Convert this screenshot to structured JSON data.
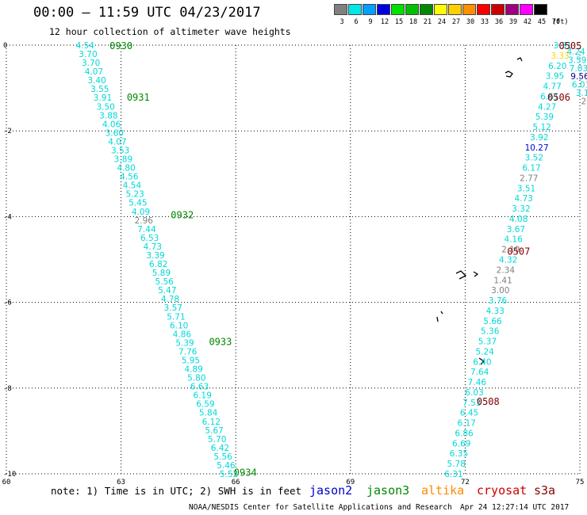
{
  "header": {
    "title": "00:00 – 11:59 UTC 04/23/2017",
    "subtitle": "12 hour collection of altimeter wave heights"
  },
  "legend": {
    "colors": [
      "#808080",
      "#00e8e8",
      "#00a0ff",
      "#0000e0",
      "#00e000",
      "#00c000",
      "#008800",
      "#ffff00",
      "#ffd000",
      "#ff9000",
      "#ff0000",
      "#cc0000",
      "#a00080",
      "#ff00ff",
      "#000000"
    ],
    "labels": [
      "3",
      "6",
      "9",
      "12",
      "15",
      "18",
      "21",
      "24",
      "27",
      "30",
      "33",
      "36",
      "39",
      "42",
      "45",
      "70"
    ],
    "unit": "(ft)"
  },
  "footer": {
    "note": "note: 1) Time is in UTC; 2) SWH is in feet",
    "satellites": [
      {
        "name": "jason2",
        "color": "#0000cc"
      },
      {
        "name": "jason3",
        "color": "#008800"
      },
      {
        "name": "altika",
        "color": "#ff8800"
      },
      {
        "name": "cryosat",
        "color": "#cc0000"
      },
      {
        "name": "s3a",
        "color": "#880000"
      }
    ],
    "credit": "NOAA/NESDIS Center for Satellite Applications and Research",
    "timestamp": "Apr 24 12:27:14 UTC 2017"
  },
  "chart_data": {
    "type": "scatter",
    "title": "00:00 – 11:59 UTC 04/23/2017",
    "subtitle": "12 hour collection of altimeter wave heights",
    "xlim": [
      60,
      75
    ],
    "ylim": [
      -10,
      0
    ],
    "x_ticks": [
      60,
      63,
      66,
      69,
      72,
      75
    ],
    "y_ticks": [
      0,
      -2,
      -4,
      -6,
      -8,
      -10
    ],
    "grid": true,
    "colors": {
      "cyan": "#00d8d8",
      "gray": "#808080",
      "blue": "#0000dd",
      "yellow": "#ffd200",
      "darkblue": "#00008b",
      "green": "#008800",
      "darkred": "#800000"
    },
    "tracks": [
      {
        "satellite": "jason3",
        "lon_start": 62.06,
        "lon_end": 65.82,
        "lat_start": 0.0,
        "lat_end": -10.0,
        "values": [
          "4.54",
          "3.70",
          "3.70",
          "4.07",
          "3.40",
          "3.55",
          "3.91",
          "3.50",
          "3.88",
          "4.06",
          "3.60",
          "4.07",
          "3.53",
          "3.89",
          "4.80",
          "4.56",
          "4.54",
          "5.23",
          "5.45",
          "4.09",
          "2.96",
          "7.44",
          "6.53",
          "4.73",
          "3.39",
          "6.82",
          "5.89",
          "5.56",
          "5.47",
          "4.78",
          "3.57",
          "5.71",
          "6.10",
          "4.86",
          "5.39",
          "7.76",
          "5.95",
          "4.89",
          "5.80",
          "6.63",
          "6.19",
          "6.59",
          "5.84",
          "6.12",
          "5.67",
          "5.70",
          "6.42",
          "5.56",
          "5.46",
          "5.52"
        ],
        "highlight": {
          "2.96": "gray"
        }
      },
      {
        "satellite": "cryosat",
        "lon_start": 74.55,
        "lon_end": 71.7,
        "lat_start": 0.0,
        "lat_end": -10.0,
        "values": [
          "3.31",
          "3.33",
          "6.20",
          "3.95",
          "4.77",
          "6.61",
          "4.27",
          "5.39",
          "5.12",
          "3.92",
          "10.27",
          "3.52",
          "6.17",
          "2.77",
          "3.51",
          "4.73",
          "3.32",
          "4.08",
          "3.67",
          "4.16",
          "2.19",
          "4.32",
          "2.34",
          "1.41",
          "3.00",
          "3.76",
          "4.33",
          "5.66",
          "5.36",
          "5.37",
          "5.24",
          "6.40",
          "7.64",
          "7.46",
          "6.03",
          "7.53",
          "6.45",
          "6.17",
          "6.86",
          "6.69",
          "6.35",
          "5.78",
          "6.31"
        ],
        "highlight": {
          "3.33": "yellow",
          "10.27": "blue",
          "2.77": "gray",
          "2.19": "gray",
          "2.34": "gray",
          "1.41": "gray",
          "3.00": "gray"
        }
      },
      {
        "satellite": "cryosat",
        "lon_start": 74.9,
        "lon_end": 75.1,
        "lat_start": -0.15,
        "lat_end": -1.3,
        "values": [
          "4.24",
          "3.59",
          "7.03",
          "9.56",
          "6.01",
          "3.1",
          "2"
        ],
        "highlight": {
          "9.56": "darkblue",
          "2": "gray"
        }
      }
    ],
    "time_labels": [
      {
        "time": "0930",
        "lon": 63.0,
        "lat": 0.0,
        "color": "green"
      },
      {
        "time": "0931",
        "lon": 63.45,
        "lat": -1.2,
        "color": "green"
      },
      {
        "time": "0932",
        "lon": 64.6,
        "lat": -3.95,
        "color": "green"
      },
      {
        "time": "0933",
        "lon": 65.6,
        "lat": -6.9,
        "color": "green"
      },
      {
        "time": "0934",
        "lon": 66.25,
        "lat": -9.95,
        "color": "green"
      },
      {
        "time": "0505",
        "lon": 74.75,
        "lat": 0.0,
        "color": "darkred"
      },
      {
        "time": "0506",
        "lon": 74.45,
        "lat": -1.2,
        "color": "darkred"
      },
      {
        "time": "0507",
        "lon": 73.4,
        "lat": -4.8,
        "color": "darkred"
      },
      {
        "time": "0508",
        "lon": 72.6,
        "lat": -8.3,
        "color": "darkred"
      }
    ]
  }
}
